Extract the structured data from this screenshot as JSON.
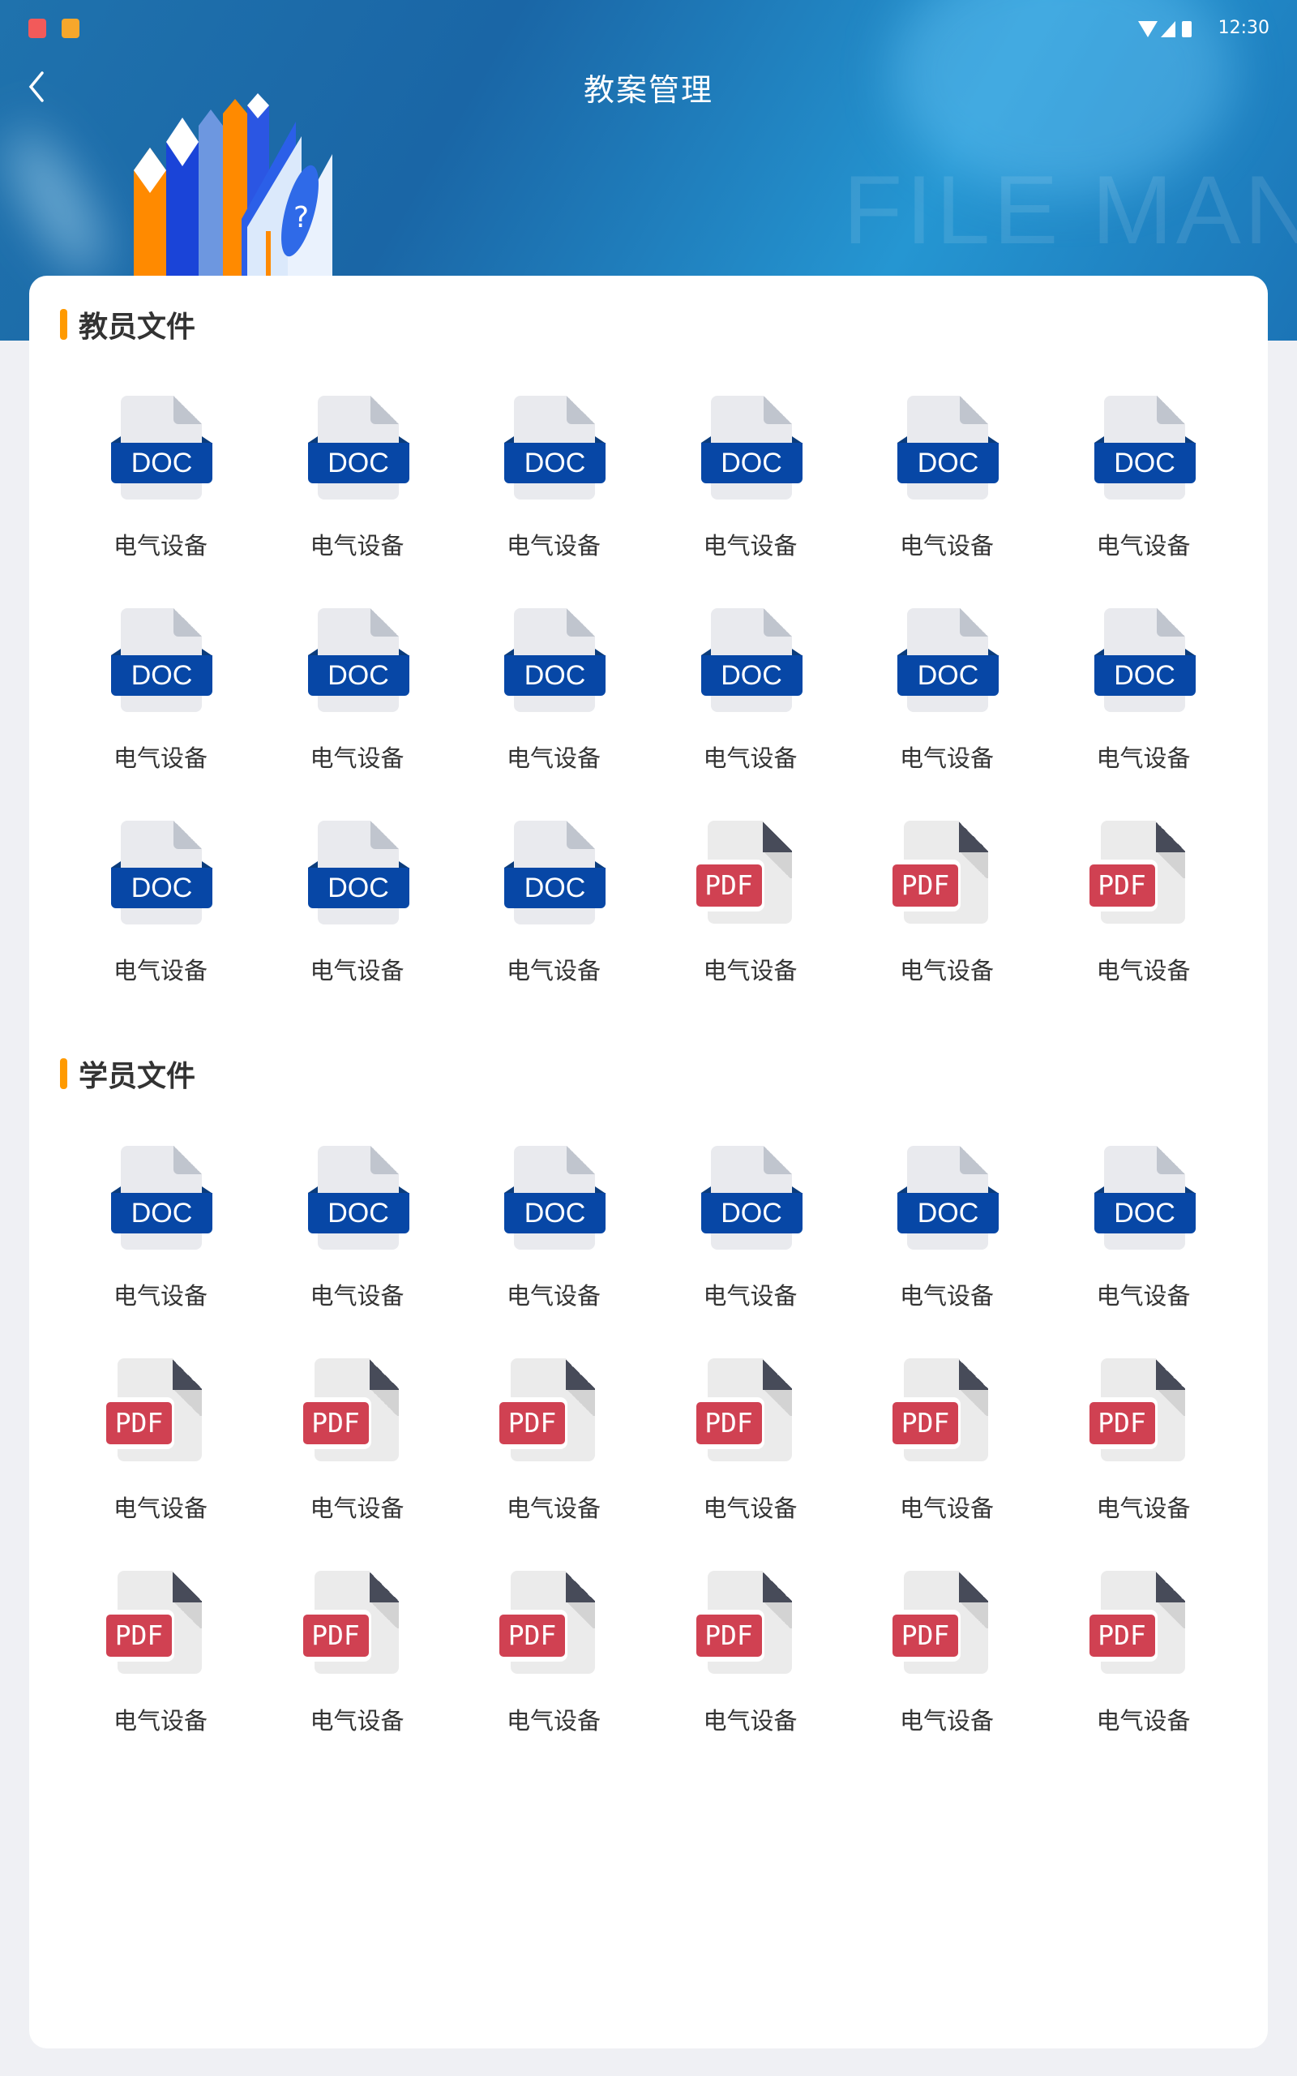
{
  "status_bar": {
    "time": "12:30",
    "app_colors": [
      "#f25a5a",
      "#f7a72b"
    ]
  },
  "header": {
    "title": "教案管理",
    "back_icon": "chevron-left-icon",
    "watermark": "FILE MANAG"
  },
  "colors": {
    "accent": "#ff9a00",
    "doc": "#0747a6",
    "pdf": "#d04152",
    "header_bg": "#1f72ad"
  },
  "sections": [
    {
      "title": "教员文件",
      "items": [
        {
          "type": "DOC",
          "label": "电气设备"
        },
        {
          "type": "DOC",
          "label": "电气设备"
        },
        {
          "type": "DOC",
          "label": "电气设备"
        },
        {
          "type": "DOC",
          "label": "电气设备"
        },
        {
          "type": "DOC",
          "label": "电气设备"
        },
        {
          "type": "DOC",
          "label": "电气设备"
        },
        {
          "type": "DOC",
          "label": "电气设备"
        },
        {
          "type": "DOC",
          "label": "电气设备"
        },
        {
          "type": "DOC",
          "label": "电气设备"
        },
        {
          "type": "DOC",
          "label": "电气设备"
        },
        {
          "type": "DOC",
          "label": "电气设备"
        },
        {
          "type": "DOC",
          "label": "电气设备"
        },
        {
          "type": "DOC",
          "label": "电气设备"
        },
        {
          "type": "DOC",
          "label": "电气设备"
        },
        {
          "type": "DOC",
          "label": "电气设备"
        },
        {
          "type": "PDF",
          "label": "电气设备"
        },
        {
          "type": "PDF",
          "label": "电气设备"
        },
        {
          "type": "PDF",
          "label": "电气设备"
        }
      ]
    },
    {
      "title": "学员文件",
      "items": [
        {
          "type": "DOC",
          "label": "电气设备"
        },
        {
          "type": "DOC",
          "label": "电气设备"
        },
        {
          "type": "DOC",
          "label": "电气设备"
        },
        {
          "type": "DOC",
          "label": "电气设备"
        },
        {
          "type": "DOC",
          "label": "电气设备"
        },
        {
          "type": "DOC",
          "label": "电气设备"
        },
        {
          "type": "PDF",
          "label": "电气设备"
        },
        {
          "type": "PDF",
          "label": "电气设备"
        },
        {
          "type": "PDF",
          "label": "电气设备"
        },
        {
          "type": "PDF",
          "label": "电气设备"
        },
        {
          "type": "PDF",
          "label": "电气设备"
        },
        {
          "type": "PDF",
          "label": "电气设备"
        },
        {
          "type": "PDF",
          "label": "电气设备"
        },
        {
          "type": "PDF",
          "label": "电气设备"
        },
        {
          "type": "PDF",
          "label": "电气设备"
        },
        {
          "type": "PDF",
          "label": "电气设备"
        },
        {
          "type": "PDF",
          "label": "电气设备"
        },
        {
          "type": "PDF",
          "label": "电气设备"
        }
      ]
    }
  ]
}
